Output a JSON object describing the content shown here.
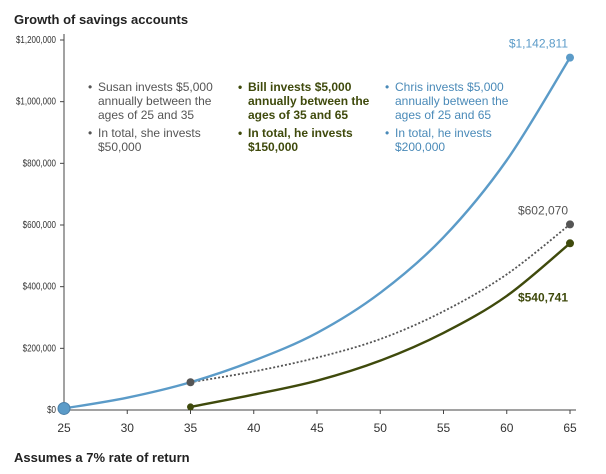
{
  "chart_data": {
    "type": "line",
    "title": "Growth of savings accounts",
    "footnote": "Assumes a 7% rate of return",
    "xlabel": "",
    "ylabel": "",
    "xlim": [
      25,
      65
    ],
    "ylim": [
      0,
      1200000
    ],
    "x_ticks": [
      25,
      30,
      35,
      40,
      45,
      50,
      55,
      60,
      65
    ],
    "y_ticks": [
      0,
      200000,
      400000,
      600000,
      800000,
      1000000,
      1200000
    ],
    "y_tick_labels": [
      "$0",
      "$200,000",
      "$400,000",
      "$600,000",
      "$800,000",
      "$1,000,000",
      "$1,200,000"
    ],
    "colors": {
      "chris": "#5b9bc8",
      "susan": "#555555",
      "bill": "#3f4a0c",
      "axis": "#444444"
    },
    "series": [
      {
        "key": "chris",
        "style": "solid",
        "x": [
          25,
          30,
          35,
          40,
          45,
          50,
          55,
          60,
          65
        ],
        "y": [
          5000,
          40000,
          90000,
          160000,
          250000,
          380000,
          560000,
          810000,
          1142811
        ],
        "end_label": "$1,142,811"
      },
      {
        "key": "susan",
        "style": "dotted",
        "x": [
          35,
          40,
          45,
          50,
          55,
          60,
          65
        ],
        "y": [
          90000,
          125000,
          170000,
          230000,
          320000,
          440000,
          602070
        ],
        "end_label": "$602,070"
      },
      {
        "key": "bill",
        "style": "solid",
        "x": [
          35,
          40,
          45,
          50,
          55,
          60,
          65
        ],
        "y": [
          10000,
          50000,
          95000,
          160000,
          250000,
          370000,
          540741
        ],
        "end_label": "$540,741"
      }
    ],
    "annotations": {
      "susan": [
        "Susan invests $5,000\nannually between the\nages of 25 and 35",
        "In total, she invests\n$50,000"
      ],
      "bill": [
        "Bill invests $5,000\nannually between the\nages of 35 and 65",
        "In total, he invests\n$150,000"
      ],
      "chris": [
        "Chris invests $5,000\nannually between the\nages of 25 and 65",
        "In total, he invests\n$200,000"
      ]
    }
  }
}
